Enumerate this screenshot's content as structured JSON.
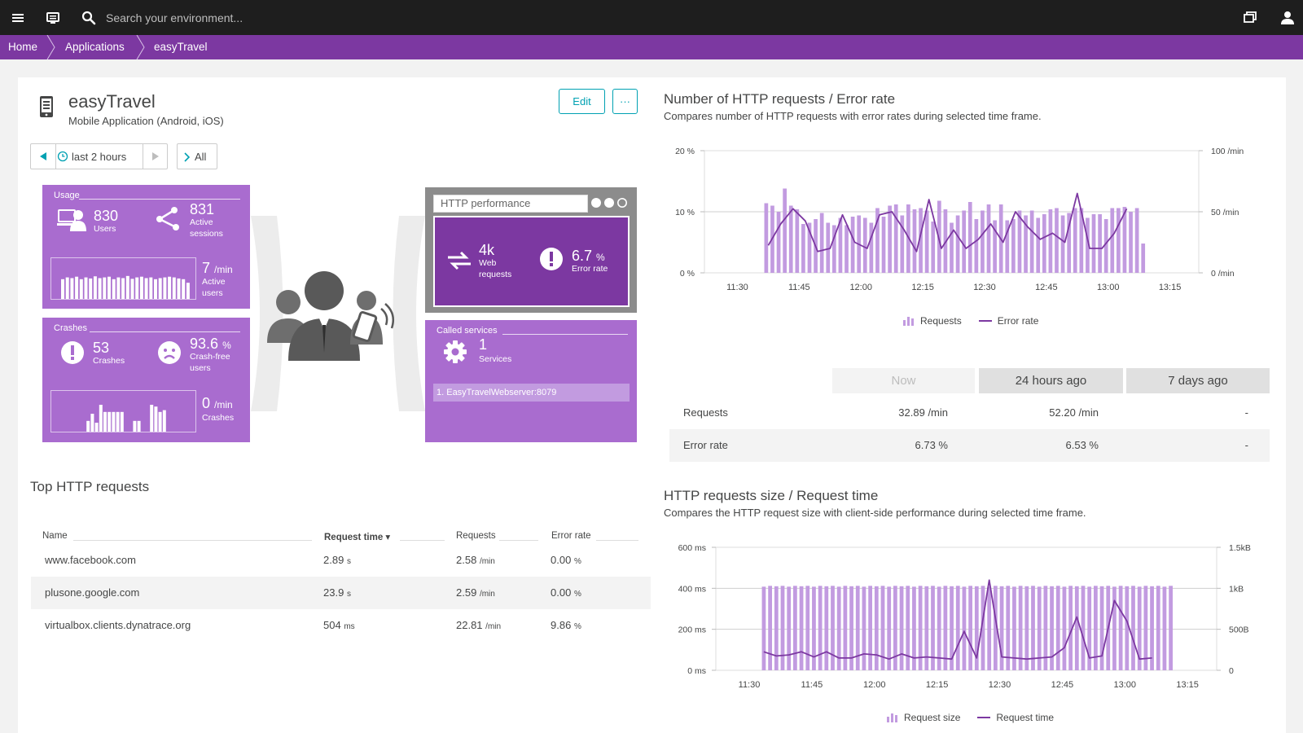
{
  "topbar": {
    "search_placeholder": "Search your environment...",
    "menu_icon": "hamburger-menu-icon",
    "monitor_icon": "monitor-icon",
    "search_icon": "search-icon",
    "windows_icon": "windows-icon",
    "user_icon": "user-icon"
  },
  "breadcrumb": {
    "items": [
      "Home",
      "Applications",
      "easyTravel"
    ]
  },
  "app": {
    "title": "easyTravel",
    "subtitle": "Mobile Application (Android, iOS)",
    "edit_label": "Edit",
    "more_label": "···"
  },
  "timeframe": {
    "label": "last 2 hours",
    "filter_label": "All"
  },
  "usage": {
    "title": "Usage",
    "users_value": "830",
    "users_label": "Users",
    "sessions_value": "831",
    "sessions_label_1": "Active",
    "sessions_label_2": "sessions",
    "active_users_value": "7",
    "active_users_unit": "/min",
    "active_users_label_1": "Active",
    "active_users_label_2": "users",
    "spark_levels": [
      0.55,
      0.6,
      0.58,
      0.62,
      0.55,
      0.6,
      0.57,
      0.63,
      0.58,
      0.6,
      0.62,
      0.55,
      0.6,
      0.58,
      0.64,
      0.56,
      0.6,
      0.62,
      0.58,
      0.6,
      0.55,
      0.58,
      0.6,
      0.62,
      0.6,
      0.57,
      0.55,
      0.45
    ]
  },
  "crashes": {
    "title": "Crashes",
    "crashes_value": "53",
    "crashes_label": "Crashes",
    "crashfree_value": "93.6",
    "crashfree_unit": "%",
    "crashfree_label_1": "Crash-free",
    "crashfree_label_2": "users",
    "rate_value": "0",
    "rate_unit": "/min",
    "rate_label": "Crashes",
    "spark_levels": [
      0,
      0,
      0,
      0,
      0,
      0,
      0.3,
      0.5,
      0.25,
      0.75,
      0.55,
      0.55,
      0.55,
      0.55,
      0.55,
      0,
      0,
      0.3,
      0.3,
      0,
      0,
      0.75,
      0.7,
      0.55,
      0.6,
      0
    ]
  },
  "http_performance": {
    "tab_label": "HTTP performance",
    "requests_value": "4k",
    "requests_label_1": "Web",
    "requests_label_2": "requests",
    "error_value": "6.7",
    "error_unit": "%",
    "error_label": "Error rate"
  },
  "called_services": {
    "title": "Called services",
    "value": "1",
    "label": "Services",
    "items": [
      "1. EasyTravelWebserver:8079"
    ]
  },
  "top_requests": {
    "title": "Top HTTP requests",
    "columns": [
      "Name",
      "Request time ▾",
      "Requests",
      "Error rate"
    ],
    "rows": [
      {
        "name": "www.facebook.com",
        "time": "2.89",
        "time_unit": "s",
        "requests": "2.58",
        "req_unit": "/min",
        "error": "0.00",
        "err_unit": "%"
      },
      {
        "name": "plusone.google.com",
        "time": "23.9",
        "time_unit": "s",
        "requests": "2.59",
        "req_unit": "/min",
        "error": "0.00",
        "err_unit": "%"
      },
      {
        "name": "virtualbox.clients.dynatrace.org",
        "time": "504",
        "time_unit": "ms",
        "requests": "22.81",
        "req_unit": "/min",
        "error": "9.86",
        "err_unit": "%"
      }
    ]
  },
  "chart1": {
    "title": "Number of HTTP requests / Error rate",
    "subtitle": "Compares number of HTTP requests with error rates during selected time frame.",
    "legend_requests": "Requests",
    "legend_error": "Error rate"
  },
  "comparison": {
    "headers": [
      "Now",
      "24 hours ago",
      "7 days ago"
    ],
    "rows": [
      {
        "label": "Requests",
        "now": "32.89 /min",
        "h24": "52.20 /min",
        "d7": "-"
      },
      {
        "label": "Error rate",
        "now": "6.73 %",
        "h24": "6.53 %",
        "d7": "-"
      }
    ]
  },
  "chart2": {
    "title": "HTTP requests size / Request time",
    "subtitle": "Compares the HTTP request size with client-side performance during selected time frame.",
    "legend_size": "Request size",
    "legend_time": "Request time"
  },
  "chart_data": [
    {
      "type": "bar",
      "title": "Number of HTTP requests / Error rate",
      "x_ticks": [
        "11:30",
        "11:45",
        "12:00",
        "12:15",
        "12:30",
        "12:45",
        "13:00",
        "13:15"
      ],
      "x_range": [
        -8,
        112
      ],
      "bar_start": 7,
      "bar_step": 1.5,
      "y_left_ticks": [
        "20 %",
        "10 %",
        "0 %"
      ],
      "y_left_range": [
        0,
        20
      ],
      "y_right_ticks": [
        "100 /min",
        "50 /min",
        "0 /min"
      ],
      "y_right_range": [
        0,
        100
      ],
      "series": [
        {
          "name": "Requests",
          "axis": "right",
          "unit": "/min",
          "values": [
            57,
            55,
            50,
            69,
            55,
            52,
            40,
            41,
            44,
            49,
            41,
            39,
            45,
            39,
            46,
            47,
            45,
            41,
            53,
            46,
            55,
            56,
            47,
            56,
            52,
            53,
            51,
            42,
            59,
            52,
            41,
            47,
            51,
            58,
            44,
            51,
            56,
            43,
            56,
            43,
            44,
            51,
            47,
            51,
            45,
            48,
            52,
            53,
            47,
            49,
            53,
            53,
            45,
            48,
            48,
            44,
            53,
            53,
            54,
            50,
            53,
            24
          ]
        },
        {
          "name": "Error rate",
          "axis": "left",
          "unit": "%",
          "x": [
            7.5,
            10.5,
            13.5,
            16.5,
            19.5,
            22.5,
            25.5,
            28.5,
            31.5,
            34.5,
            37.5,
            40.5,
            43.5,
            46.5,
            49.5,
            52.5,
            55.5,
            58.5,
            61.5,
            64.5,
            67.5,
            70.5,
            73.5,
            76.5,
            79.5,
            82.5,
            85.5,
            88.5,
            91.5,
            94.5
          ],
          "values": [
            4.5,
            8.0,
            10.5,
            8.5,
            3.5,
            4.0,
            9.5,
            5.0,
            4.0,
            9.5,
            10.0,
            7.0,
            3.5,
            12.0,
            4.0,
            7.0,
            4.0,
            5.5,
            8.0,
            5.0,
            10.0,
            7.5,
            5.5,
            6.5,
            5.0,
            13.0,
            4.0,
            4.0,
            6.5,
            10.5
          ]
        }
      ]
    },
    {
      "type": "bar",
      "title": "HTTP requests size / Request time",
      "x_ticks": [
        "11:30",
        "11:45",
        "12:00",
        "12:15",
        "12:30",
        "12:45",
        "13:00",
        "13:15"
      ],
      "x_range": [
        -8,
        112
      ],
      "bar_start": 3.5,
      "bar_step": 1.5,
      "y_left_ticks": [
        "600 ms",
        "400 ms",
        "200 ms",
        "0 ms"
      ],
      "y_left_range": [
        0,
        600
      ],
      "y_right_ticks": [
        "1.5kB",
        "1kB",
        "500B",
        "0"
      ],
      "y_right_range": [
        0,
        1500
      ],
      "series": [
        {
          "name": "Request size",
          "axis": "right",
          "unit": "B",
          "values": [
            1020,
            1030,
            1025,
            1030,
            1020,
            1030,
            1025,
            1030,
            1020,
            1030,
            1025,
            1030,
            1020,
            1030,
            1025,
            1030,
            1020,
            1030,
            1025,
            1030,
            1020,
            1030,
            1025,
            1030,
            1020,
            1030,
            1025,
            1030,
            1020,
            1030,
            1025,
            1030,
            1020,
            1030,
            1025,
            1030,
            1020,
            1030,
            1025,
            1030,
            1020,
            1030,
            1025,
            1030,
            1020,
            1030,
            1025,
            1030,
            1020,
            1030,
            1025,
            1030,
            1020,
            1030,
            1025,
            1030,
            1020,
            1030,
            1025,
            1030,
            1020,
            1030,
            1025,
            1030,
            1020,
            1030
          ]
        },
        {
          "name": "Request time",
          "axis": "left",
          "unit": "ms",
          "x": [
            3.5,
            6.5,
            9.5,
            12.5,
            15.5,
            18.5,
            21.5,
            24.5,
            27.5,
            30.5,
            33.5,
            36.5,
            39.5,
            42.5,
            45.5,
            48.5,
            51.5,
            54.5,
            57.5,
            60.5,
            63.5,
            66.5,
            69.5,
            72.5,
            75.5,
            78.5,
            81.5,
            84.5,
            87.5,
            90.5,
            93.5,
            96.5
          ],
          "values": [
            90,
            70,
            75,
            90,
            65,
            90,
            60,
            60,
            80,
            75,
            55,
            80,
            60,
            65,
            60,
            55,
            190,
            60,
            440,
            65,
            60,
            55,
            60,
            65,
            110,
            260,
            60,
            70,
            340,
            240,
            55,
            60
          ]
        }
      ]
    }
  ]
}
